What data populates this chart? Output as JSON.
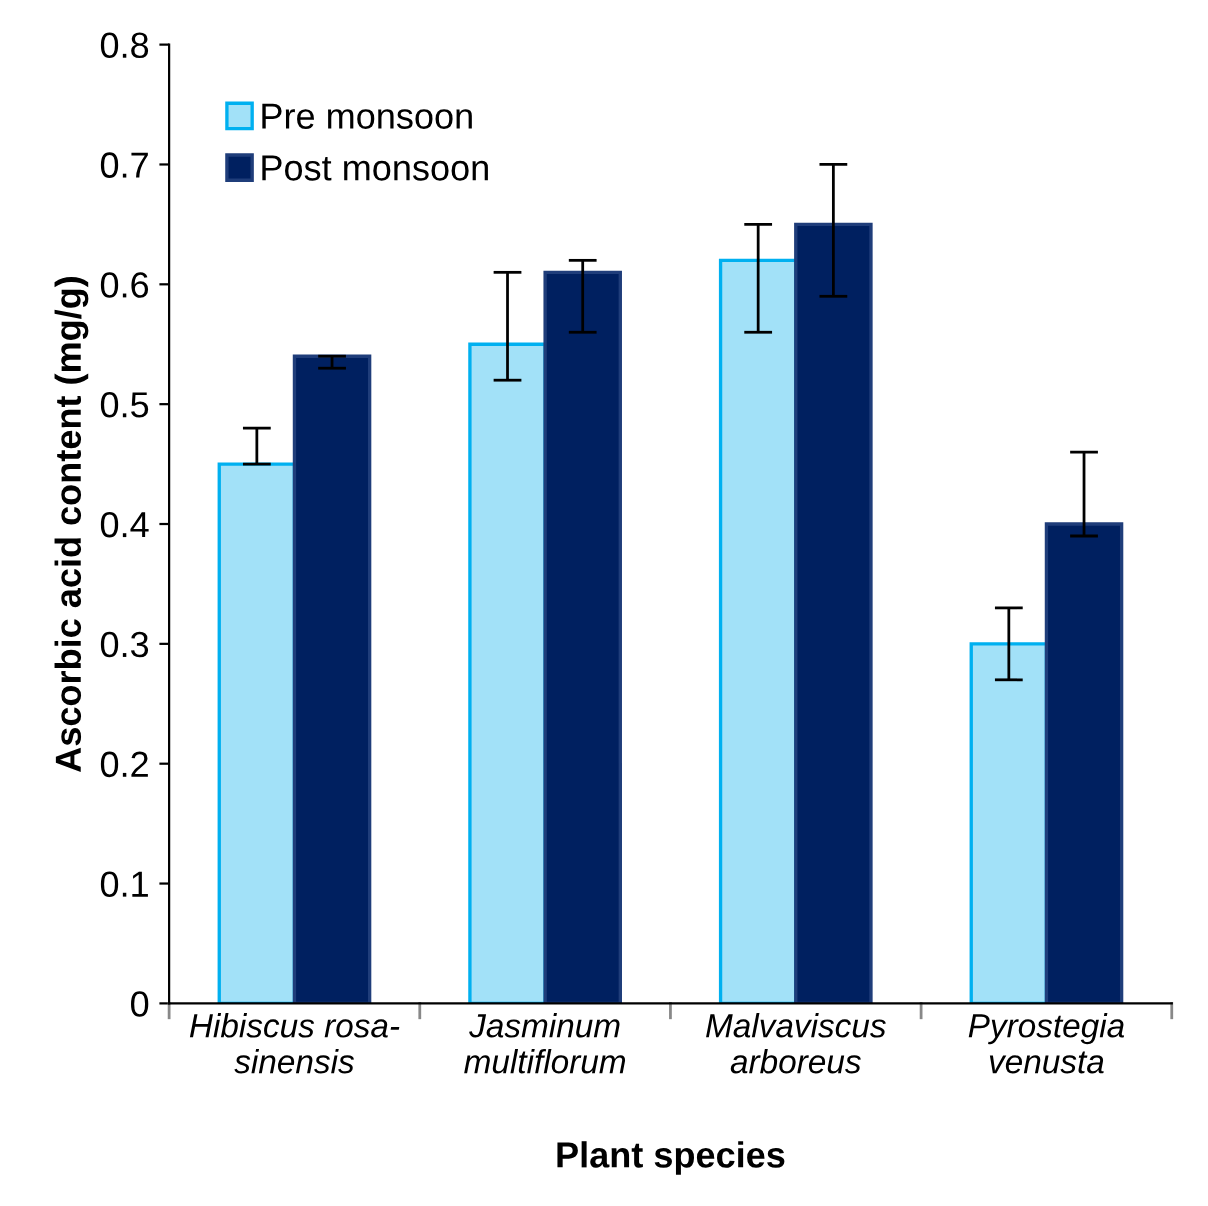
{
  "chart_data": {
    "type": "bar",
    "xlabel": "Plant species",
    "ylabel": "Ascorbic acid content (mg/g)",
    "categories": [
      "Hibiscus rosa-\nsinensis",
      "Jasminum\nmultiflorum",
      "Malvaviscus\narboreus",
      "Pyrostegia\nvenusta"
    ],
    "series": [
      {
        "name": "Pre monsoon",
        "color": "#a2e1f8",
        "values": [
          0.45,
          0.55,
          0.62,
          0.3
        ],
        "errors": [
          [
            0.45,
            0.48
          ],
          [
            0.52,
            0.61
          ],
          [
            0.56,
            0.65
          ],
          [
            0.27,
            0.33
          ]
        ]
      },
      {
        "name": "Post monsoon",
        "color": "#002060",
        "values": [
          0.54,
          0.61,
          0.65,
          0.4
        ],
        "errors": [
          [
            0.53,
            0.54
          ],
          [
            0.56,
            0.62
          ],
          [
            0.59,
            0.7
          ],
          [
            0.39,
            0.46
          ]
        ]
      }
    ],
    "ylim": [
      0,
      0.8
    ],
    "yticks": [
      0,
      0.1,
      0.2,
      0.3,
      0.4,
      0.5,
      0.6,
      0.7,
      0.8
    ],
    "grid": false,
    "legend": "top left"
  }
}
